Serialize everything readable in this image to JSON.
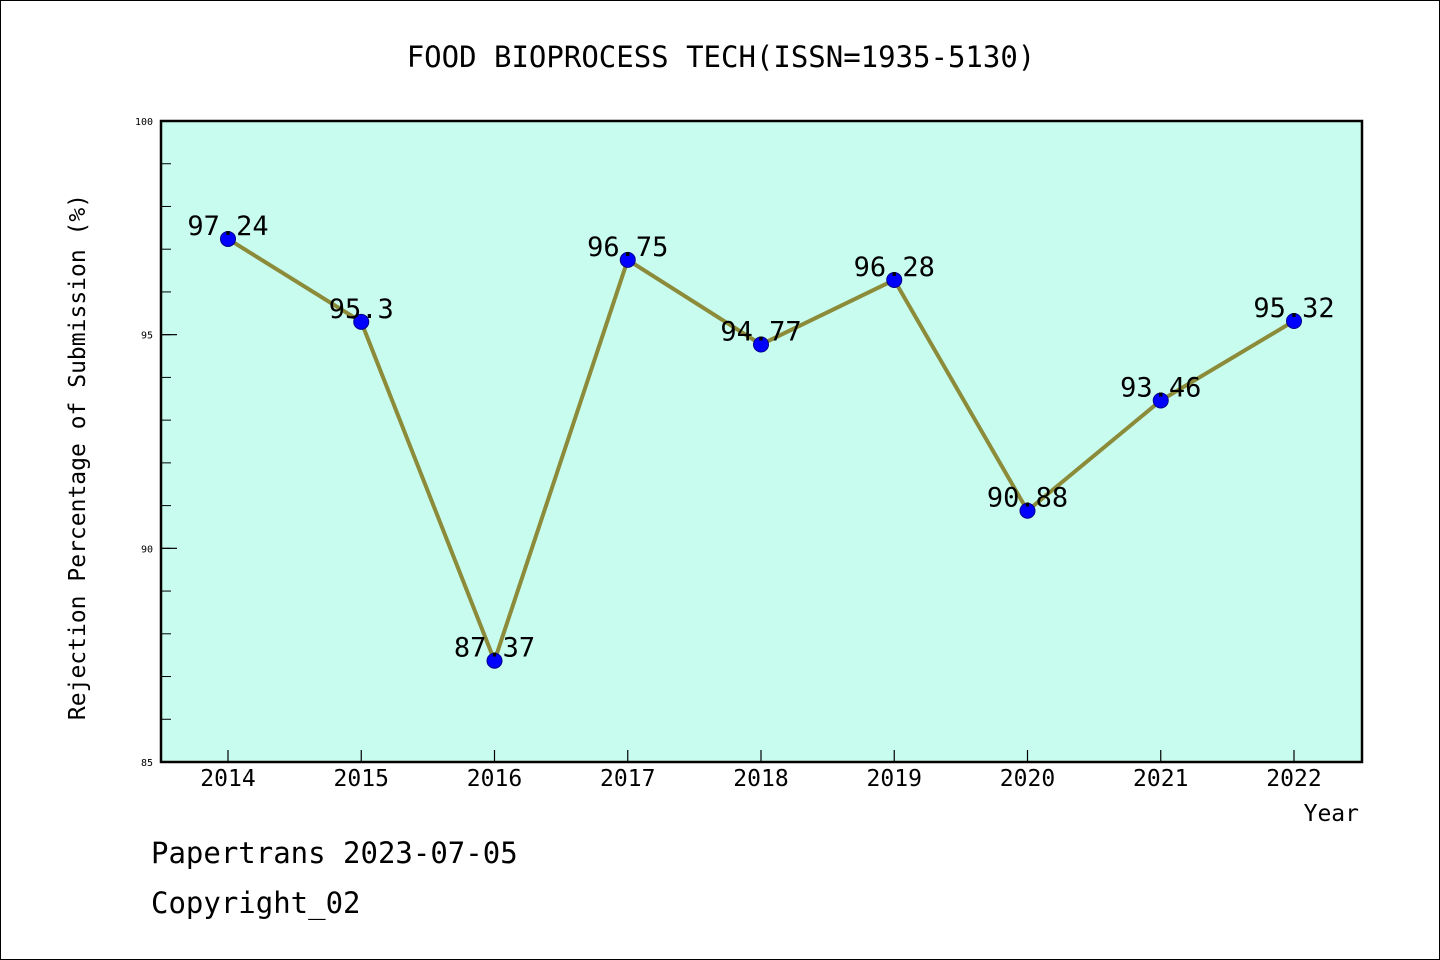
{
  "chart_data": {
    "type": "line",
    "title": "FOOD BIOPROCESS TECH(ISSN=1935-5130)",
    "xlabel": "Year",
    "ylabel": "Rejection Percentage of Submission (%)",
    "categories": [
      "2014",
      "2015",
      "2016",
      "2017",
      "2018",
      "2019",
      "2020",
      "2021",
      "2022"
    ],
    "series": [
      {
        "values": [
          97.24,
          95.3,
          87.37,
          96.75,
          94.77,
          96.28,
          90.88,
          93.46,
          95.32
        ],
        "labels": [
          "97.24",
          "95.3",
          "87.37",
          "96.75",
          "94.77",
          "96.28",
          "90.88",
          "93.46",
          "95.32"
        ]
      }
    ],
    "ylim": [
      85,
      100
    ],
    "y_ticks": [
      "85",
      "90",
      "95",
      "100"
    ],
    "y_minor_step": 1,
    "grid": false,
    "legend": "none",
    "colors": {
      "plot_background": "#c8fcee",
      "line": "#8b8b3a",
      "marker": "#0000ff",
      "marker_edge": "#00008b"
    }
  },
  "footer": {
    "line1": "Papertrans 2023-07-05",
    "line2": "Copyright_02"
  }
}
